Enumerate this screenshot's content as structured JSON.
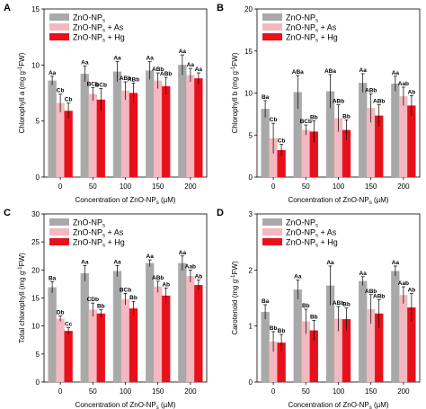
{
  "figure": {
    "type": "grouped-bar-panels"
  },
  "chart_data": [
    {
      "panel_label": "A",
      "type": "bar",
      "ylabel_main": "Chlorophyll a (mg g",
      "ylabel_sup": "-1",
      "ylabel_end": "FW)",
      "xlabel_main": "Concentration of ZnO-NP",
      "xlabel_sub": "s",
      "xlabel_end": " (µM)",
      "categories": [
        "0",
        "50",
        "100",
        "150",
        "200"
      ],
      "ylim": [
        0,
        15
      ],
      "yticks": [
        "0",
        "5",
        "10",
        "15"
      ],
      "series": [
        {
          "name_main": "ZnO-NP",
          "name_sub": "s",
          "name_end": "",
          "color": "#a9a9a9",
          "values": [
            8.6,
            9.2,
            9.4,
            9.5,
            10.0
          ],
          "errors": [
            0.4,
            0.7,
            0.9,
            0.8,
            0.9
          ],
          "labels": [
            "Aa",
            "Aa",
            "Aa",
            "Aa",
            "Aa"
          ]
        },
        {
          "name_main": "ZnO-NP",
          "name_sub": "s",
          "name_end": " + As",
          "color": "#f4b8c0",
          "values": [
            6.6,
            7.4,
            7.7,
            8.6,
            9.1
          ],
          "errors": [
            0.8,
            0.6,
            0.8,
            0.7,
            0.6
          ],
          "labels": [
            "Cb",
            "BCb",
            "ABb",
            "ABb",
            "Aa"
          ]
        },
        {
          "name_main": "ZnO-NP",
          "name_sub": "s",
          "name_end": " + Hg",
          "color": "#e8101a",
          "values": [
            5.9,
            6.9,
            7.5,
            8.1,
            8.8
          ],
          "errors": [
            0.7,
            1.0,
            0.9,
            0.8,
            0.5
          ],
          "labels": [
            "Cb",
            "BCb",
            "ABb",
            "ABb",
            "Aa"
          ]
        }
      ]
    },
    {
      "panel_label": "B",
      "type": "bar",
      "ylabel_main": "Chlorophyll b (mg g",
      "ylabel_sup": "-1",
      "ylabel_end": "FW)",
      "xlabel_main": "Concentration of ZnO-NP",
      "xlabel_sub": "s",
      "xlabel_end": " (µM)",
      "categories": [
        "0",
        "50",
        "100",
        "150",
        "200"
      ],
      "ylim": [
        0,
        20
      ],
      "yticks": [
        "0",
        "5",
        "10",
        "15",
        "20"
      ],
      "series": [
        {
          "name_main": "ZnO-NP",
          "name_sub": "s",
          "name_end": "",
          "color": "#a9a9a9",
          "values": [
            8.1,
            10.1,
            10.2,
            11.2,
            11.1
          ],
          "errors": [
            1.0,
            2.0,
            2.0,
            1.1,
            0.9
          ],
          "labels": [
            "Ba",
            "ABa",
            "ABa",
            "Aa",
            "Aa"
          ]
        },
        {
          "name_main": "ZnO-NP",
          "name_sub": "s",
          "name_end": " + As",
          "color": "#f4b8c0",
          "values": [
            4.6,
            5.6,
            7.0,
            8.2,
            9.6
          ],
          "errors": [
            1.8,
            0.6,
            1.6,
            1.7,
            1.1
          ],
          "labels": [
            "Cb",
            "BCb",
            "ABb",
            "ABb",
            "Aab"
          ]
        },
        {
          "name_main": "ZnO-NP",
          "name_sub": "s",
          "name_end": " + Hg",
          "color": "#e8101a",
          "values": [
            3.2,
            5.4,
            5.6,
            7.3,
            8.5
          ],
          "errors": [
            0.7,
            1.3,
            1.2,
            1.3,
            1.2
          ],
          "labels": [
            "Cb",
            "Bb",
            "Bb",
            "ABb",
            "Ab"
          ]
        }
      ]
    },
    {
      "panel_label": "C",
      "type": "bar",
      "ylabel_main": "Total chlorophyll (mg g",
      "ylabel_sup": "-1",
      "ylabel_end": "FW)",
      "xlabel_main": "Concentration of ZnO-NP",
      "xlabel_sub": "s",
      "xlabel_end": " (µM)",
      "categories": [
        "0",
        "50",
        "100",
        "150",
        "200"
      ],
      "ylim": [
        0,
        30
      ],
      "yticks": [
        "0",
        "5",
        "10",
        "15",
        "20",
        "25",
        "30"
      ],
      "series": [
        {
          "name_main": "ZnO-NP",
          "name_sub": "s",
          "name_end": "",
          "color": "#a9a9a9",
          "values": [
            16.9,
            19.4,
            19.8,
            21.2,
            21.2
          ],
          "errors": [
            1.0,
            1.4,
            1.0,
            0.6,
            1.3
          ],
          "labels": [
            "Ba",
            "Aa",
            "Aa",
            "Aa",
            "Aa"
          ]
        },
        {
          "name_main": "ZnO-NP",
          "name_sub": "s",
          "name_end": " + As",
          "color": "#f4b8c0",
          "values": [
            11.3,
            12.9,
            14.8,
            17.0,
            18.9
          ],
          "errors": [
            0.5,
            1.2,
            1.0,
            1.0,
            1.1
          ],
          "labels": [
            "Db",
            "CDb",
            "BCb",
            "ABb",
            "Aab"
          ]
        },
        {
          "name_main": "ZnO-NP",
          "name_sub": "s",
          "name_end": " + Hg",
          "color": "#e8101a",
          "values": [
            9.1,
            12.2,
            13.1,
            15.4,
            17.3
          ],
          "errors": [
            0.6,
            0.7,
            1.3,
            1.4,
            0.9
          ],
          "labels": [
            "Cc",
            "Bb",
            "Bb",
            "Ab",
            "Ab"
          ]
        }
      ]
    },
    {
      "panel_label": "D",
      "type": "bar",
      "ylabel_main": "Carotenoid (mg g",
      "ylabel_sup": "-1",
      "ylabel_end": "FW)",
      "xlabel_main": "Concentration of ZnO-NP",
      "xlabel_sub": "s",
      "xlabel_end": " (µM)",
      "categories": [
        "0",
        "50",
        "100",
        "150",
        "200"
      ],
      "ylim": [
        0,
        3
      ],
      "yticks": [
        "0",
        "1",
        "2",
        "3"
      ],
      "series": [
        {
          "name_main": "ZnO-NP",
          "name_sub": "s",
          "name_end": "",
          "color": "#a9a9a9",
          "values": [
            1.25,
            1.65,
            1.72,
            1.8,
            1.98
          ],
          "errors": [
            0.13,
            0.17,
            0.35,
            0.08,
            0.09
          ],
          "labels": [
            "Ba",
            "Aa",
            "Aa",
            "Aa",
            "Aa"
          ]
        },
        {
          "name_main": "ZnO-NP",
          "name_sub": "s",
          "name_end": " + As",
          "color": "#f4b8c0",
          "values": [
            0.72,
            1.08,
            1.13,
            1.3,
            1.55
          ],
          "errors": [
            0.18,
            0.22,
            0.22,
            0.26,
            0.15
          ],
          "labels": [
            "Bb",
            "Bb",
            "ABb",
            "ABb",
            "Aab"
          ]
        },
        {
          "name_main": "ZnO-NP",
          "name_sub": "s",
          "name_end": " + Hg",
          "color": "#e8101a",
          "values": [
            0.7,
            0.92,
            1.12,
            1.22,
            1.33
          ],
          "errors": [
            0.15,
            0.18,
            0.2,
            0.25,
            0.25
          ],
          "labels": [
            "Bb",
            "Bb",
            "Bb",
            "ABb",
            "Ab"
          ]
        }
      ]
    }
  ]
}
